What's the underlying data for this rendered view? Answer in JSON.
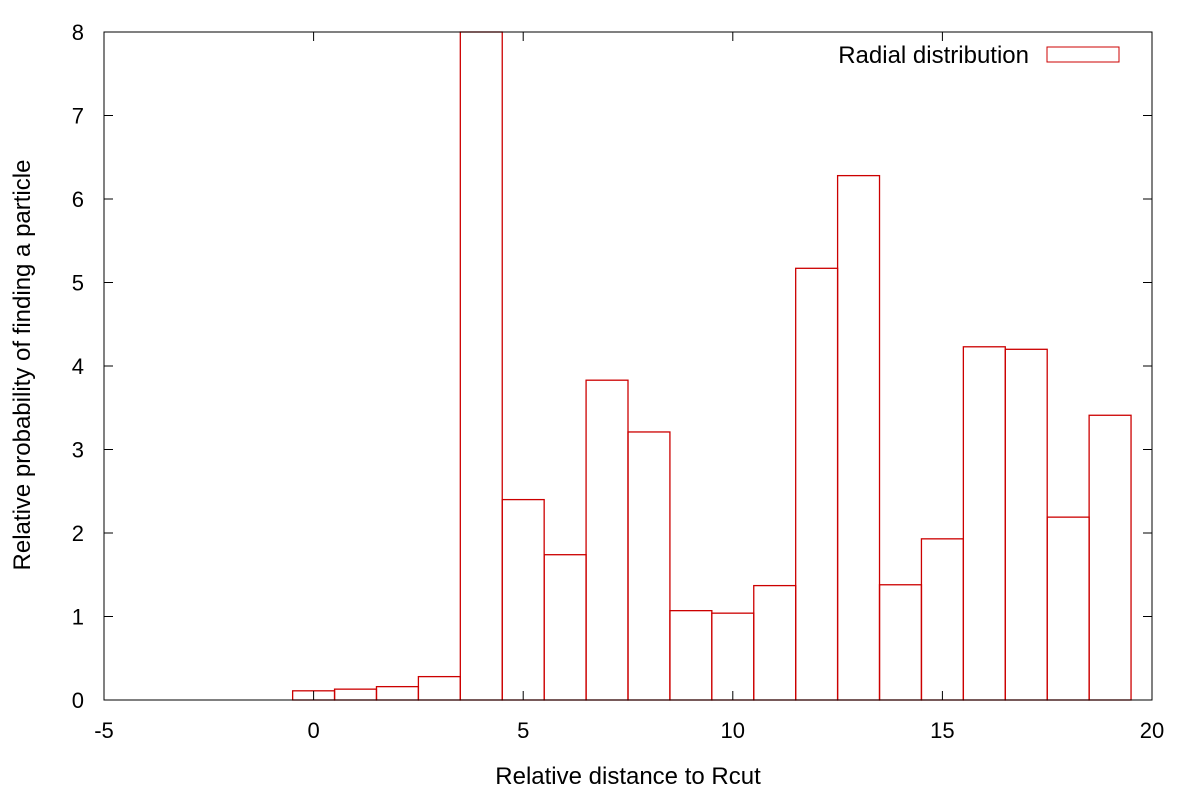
{
  "chart_data": {
    "type": "bar",
    "xlabel": "Relative distance to Rcut",
    "ylabel": "Relative probability of finding a particle",
    "xlim": [
      -5,
      20
    ],
    "ylim": [
      0,
      8
    ],
    "xticks": [
      -5,
      0,
      5,
      10,
      15,
      20
    ],
    "yticks": [
      0,
      1,
      2,
      3,
      4,
      5,
      6,
      7,
      8
    ],
    "bin_width": 1,
    "grid": false,
    "legend_position": "top-right",
    "series": [
      {
        "name": "Radial distribution",
        "color": "#cc0000",
        "style": "outlined boxes",
        "x": [
          0,
          1,
          2,
          3,
          4,
          5,
          6,
          7,
          8,
          9,
          10,
          11,
          12,
          13,
          14,
          15,
          16,
          17,
          18,
          19
        ],
        "values": [
          0.11,
          0.13,
          0.16,
          0.28,
          8.0,
          2.4,
          1.74,
          3.83,
          3.21,
          1.07,
          1.04,
          1.37,
          5.17,
          6.28,
          1.38,
          1.93,
          4.23,
          4.2,
          2.19,
          3.41
        ]
      }
    ]
  }
}
